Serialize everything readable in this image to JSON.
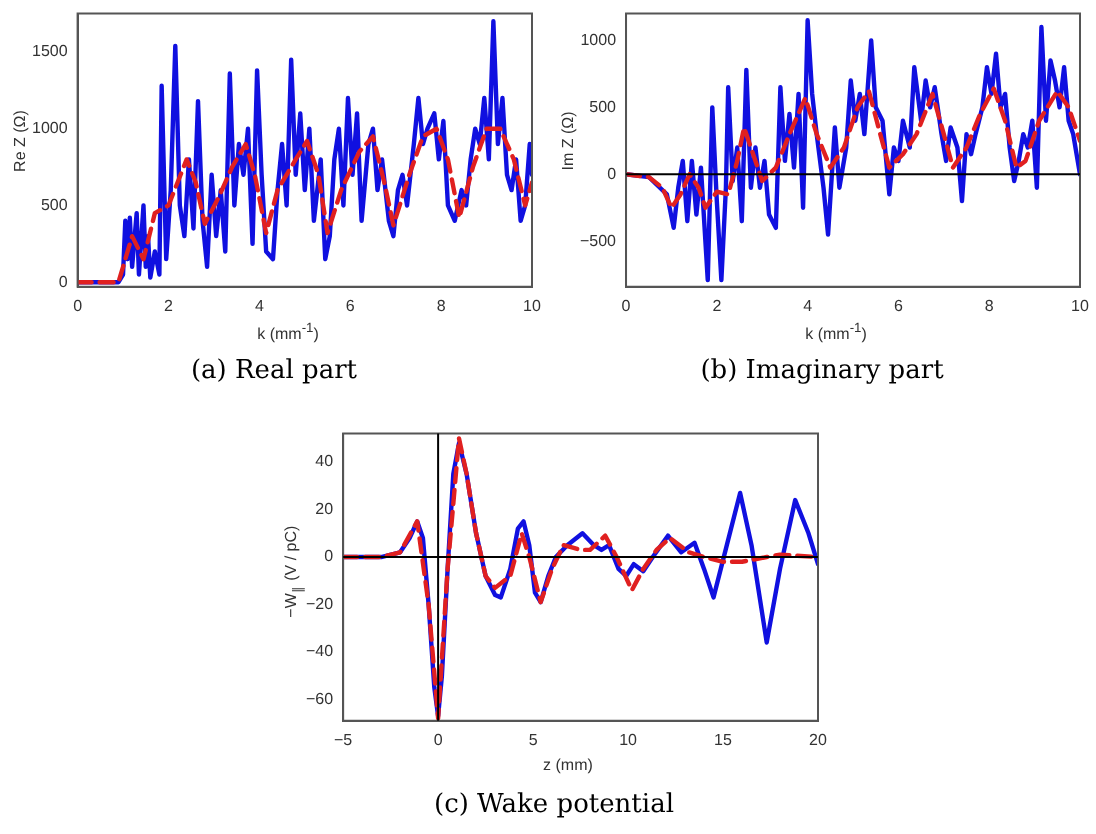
{
  "chart_data": [
    {
      "type": "line",
      "title": "(a) Real part",
      "xlabel": "k (mm$^{-1}$)",
      "ylabel": "Re Z (Ω)",
      "xlim": [
        0,
        10
      ],
      "ylim": [
        -30,
        1750
      ],
      "xticks": [
        0,
        2,
        4,
        6,
        8,
        10
      ],
      "yticks": [
        0,
        500,
        1000,
        1500
      ],
      "grid": false,
      "marker": "none",
      "series": [
        {
          "color": "#1010e0",
          "line_style": "solid",
          "x": [
            0,
            0.9,
            1.0,
            1.05,
            1.1,
            1.15,
            1.2,
            1.3,
            1.35,
            1.45,
            1.5,
            1.55,
            1.6,
            1.7,
            1.8,
            1.85,
            1.95,
            2.05,
            2.15,
            2.25,
            2.35,
            2.45,
            2.55,
            2.65,
            2.75,
            2.85,
            2.95,
            3.05,
            3.15,
            3.25,
            3.35,
            3.45,
            3.55,
            3.65,
            3.75,
            3.85,
            3.95,
            4.05,
            4.15,
            4.3,
            4.4,
            4.5,
            4.6,
            4.7,
            4.8,
            4.9,
            5.0,
            5.1,
            5.2,
            5.35,
            5.45,
            5.55,
            5.65,
            5.75,
            5.85,
            5.95,
            6.05,
            6.15,
            6.25,
            6.4,
            6.5,
            6.6,
            6.7,
            6.85,
            6.95,
            7.05,
            7.15,
            7.25,
            7.4,
            7.5,
            7.6,
            7.7,
            7.85,
            7.95,
            8.05,
            8.15,
            8.3,
            8.45,
            8.55,
            8.65,
            8.75,
            8.85,
            8.95,
            9.05,
            9.15,
            9.25,
            9.35,
            9.45,
            9.55,
            9.65,
            9.75,
            9.85,
            9.95,
            10
          ],
          "values": [
            0,
            0,
            50,
            400,
            150,
            420,
            100,
            450,
            50,
            500,
            100,
            300,
            30,
            200,
            50,
            1280,
            150,
            600,
            1540,
            500,
            300,
            800,
            350,
            1180,
            400,
            100,
            700,
            300,
            600,
            200,
            1360,
            500,
            900,
            700,
            1000,
            250,
            1380,
            700,
            200,
            150,
            600,
            900,
            500,
            1450,
            700,
            1100,
            600,
            1000,
            400,
            800,
            150,
            300,
            800,
            1000,
            500,
            1200,
            700,
            1100,
            400,
            900,
            1000,
            600,
            800,
            400,
            300,
            600,
            700,
            500,
            900,
            1200,
            900,
            1000,
            1100,
            800,
            1050,
            500,
            400,
            600,
            500,
            800,
            1000,
            900,
            1200,
            800,
            1700,
            900,
            1200,
            700,
            600,
            800,
            400,
            500,
            900,
            700
          ]
        },
        {
          "color": "#e02020",
          "line_style": "dashed",
          "x": [
            0,
            0.9,
            1.05,
            1.2,
            1.45,
            1.7,
            2.0,
            2.4,
            2.6,
            2.8,
            3.1,
            3.4,
            3.7,
            3.9,
            4.15,
            4.4,
            4.8,
            5.05,
            5.3,
            5.5,
            5.8,
            6.2,
            6.5,
            6.75,
            6.95,
            7.3,
            7.6,
            7.9,
            8.15,
            8.4,
            8.7,
            9.0,
            9.3,
            9.6,
            9.85,
            10
          ],
          "values": [
            0,
            0,
            150,
            300,
            150,
            450,
            500,
            800,
            650,
            380,
            550,
            750,
            900,
            700,
            320,
            600,
            800,
            920,
            700,
            320,
            600,
            850,
            950,
            650,
            370,
            700,
            950,
            1000,
            800,
            420,
            750,
            1000,
            1000,
            800,
            500,
            650
          ]
        }
      ]
    },
    {
      "type": "line",
      "title": "(b) Imaginary part",
      "xlabel": "k (mm$^{-1}$)",
      "ylabel": "Im Z (Ω)",
      "xlim": [
        0,
        10
      ],
      "ylim": [
        -840,
        1200
      ],
      "xticks": [
        0,
        2,
        4,
        6,
        8,
        10
      ],
      "yticks": [
        {
          "value": -500,
          "label": "−500"
        },
        0,
        500,
        1000
      ],
      "grid": false,
      "marker": "none",
      "ref_lines": [
        {
          "axis": "y",
          "value": 0,
          "color": "#000000"
        }
      ],
      "series": [
        {
          "color": "#1010e0",
          "line_style": "solid",
          "x": [
            0,
            0.5,
            0.9,
            1.05,
            1.15,
            1.25,
            1.35,
            1.45,
            1.55,
            1.65,
            1.8,
            1.9,
            2.0,
            2.1,
            2.2,
            2.25,
            2.35,
            2.45,
            2.55,
            2.65,
            2.75,
            2.85,
            2.95,
            3.05,
            3.15,
            3.3,
            3.4,
            3.5,
            3.6,
            3.7,
            3.8,
            3.9,
            4.0,
            4.1,
            4.2,
            4.35,
            4.45,
            4.6,
            4.7,
            4.85,
            4.95,
            5.05,
            5.15,
            5.25,
            5.4,
            5.5,
            5.65,
            5.8,
            5.9,
            6.0,
            6.1,
            6.25,
            6.35,
            6.5,
            6.6,
            6.7,
            6.8,
            6.95,
            7.05,
            7.15,
            7.3,
            7.4,
            7.5,
            7.6,
            7.7,
            7.85,
            7.95,
            8.05,
            8.15,
            8.25,
            8.35,
            8.45,
            8.55,
            8.65,
            8.75,
            8.85,
            8.95,
            9.05,
            9.15,
            9.25,
            9.35,
            9.45,
            9.55,
            9.65,
            9.75,
            9.85,
            10
          ],
          "values": [
            0,
            -20,
            -150,
            -400,
            -100,
            100,
            -350,
            100,
            -300,
            50,
            -790,
            500,
            -200,
            -790,
            -100,
            650,
            -50,
            200,
            -350,
            780,
            -100,
            200,
            -100,
            100,
            -300,
            -400,
            650,
            100,
            450,
            50,
            600,
            -250,
            1150,
            600,
            300,
            -100,
            -450,
            350,
            -100,
            200,
            700,
            400,
            600,
            300,
            1000,
            500,
            400,
            -150,
            200,
            100,
            400,
            200,
            800,
            400,
            700,
            500,
            650,
            300,
            100,
            350,
            200,
            -200,
            300,
            150,
            300,
            500,
            800,
            600,
            900,
            500,
            600,
            200,
            -50,
            100,
            300,
            200,
            400,
            -100,
            1100,
            400,
            850,
            700,
            500,
            800,
            400,
            300,
            0
          ]
        },
        {
          "color": "#e02020",
          "line_style": "dashed",
          "x": [
            0,
            0.5,
            0.8,
            1.0,
            1.2,
            1.4,
            1.6,
            1.75,
            2.0,
            2.25,
            2.45,
            2.6,
            2.8,
            3.0,
            3.3,
            3.6,
            3.95,
            4.2,
            4.5,
            4.8,
            5.1,
            5.35,
            5.6,
            5.8,
            6.1,
            6.4,
            6.75,
            7.0,
            7.2,
            7.5,
            7.8,
            8.1,
            8.35,
            8.6,
            8.8,
            9.1,
            9.5,
            9.75,
            10
          ],
          "values": [
            0,
            -20,
            -100,
            -250,
            -150,
            0,
            -100,
            -250,
            -130,
            -150,
            100,
            350,
            150,
            -50,
            50,
            300,
            570,
            300,
            50,
            200,
            500,
            620,
            300,
            50,
            150,
            300,
            600,
            300,
            50,
            200,
            450,
            640,
            400,
            50,
            100,
            400,
            620,
            500,
            250
          ]
        }
      ]
    },
    {
      "type": "line",
      "title": "(c) Wake potential",
      "xlabel": "z (mm)",
      "ylabel": "−W$_{∥}$ (V / pC)",
      "xlim": [
        -5,
        20
      ],
      "ylim": [
        -69,
        52
      ],
      "xticks": [
        {
          "value": -5,
          "label": "−5"
        },
        0,
        5,
        10,
        15,
        20
      ],
      "yticks": [
        {
          "value": -60,
          "label": "−60"
        },
        {
          "value": -40,
          "label": "−40"
        },
        {
          "value": -20,
          "label": "−20"
        },
        0,
        20,
        40
      ],
      "grid": false,
      "marker": "none",
      "ref_lines": [
        {
          "axis": "y",
          "value": 0,
          "color": "#000000"
        },
        {
          "axis": "x",
          "value": 0,
          "color": "#000000"
        }
      ],
      "series": [
        {
          "color": "#1010e0",
          "line_style": "solid",
          "x": [
            -5,
            -3,
            -2,
            -1.5,
            -1.1,
            -0.8,
            -0.5,
            -0.2,
            0,
            0.2,
            0.5,
            0.8,
            1.1,
            1.5,
            2.0,
            2.5,
            3.0,
            3.3,
            3.8,
            4.2,
            4.5,
            4.8,
            5.1,
            5.4,
            5.8,
            6.2,
            6.8,
            7.6,
            8.2,
            8.6,
            9.0,
            9.5,
            9.9,
            10.3,
            10.8,
            11.3,
            12.1,
            12.8,
            13.5,
            14.0,
            14.5,
            15.2,
            15.9,
            16.5,
            17.3,
            18.0,
            18.8,
            19.5,
            20
          ],
          "values": [
            0,
            0,
            2,
            8,
            15,
            8,
            -20,
            -55,
            -67,
            -50,
            -5,
            35,
            48,
            35,
            10,
            -8,
            -16,
            -17,
            -5,
            12,
            15,
            5,
            -15,
            -19,
            -8,
            0,
            5,
            10,
            5,
            3,
            5,
            -5,
            -8,
            -3,
            -6,
            0,
            9,
            2,
            6,
            -5,
            -17,
            5,
            27,
            5,
            -36,
            -5,
            24,
            10,
            -3
          ]
        },
        {
          "color": "#e02020",
          "line_style": "dashed",
          "x": [
            -5,
            -3,
            -2,
            -1.1,
            -0.5,
            0,
            0.5,
            1.1,
            1.5,
            2.0,
            2.5,
            3.0,
            3.8,
            4.4,
            4.8,
            5.4,
            6.0,
            6.6,
            7.5,
            8.0,
            8.8,
            9.4,
            10.2,
            10.8,
            11.5,
            12.2,
            13.2,
            14,
            15,
            16,
            17.3,
            18,
            20
          ],
          "values": [
            0,
            0,
            2,
            15,
            -20,
            -68,
            -5,
            50,
            35,
            10,
            -8,
            -13,
            -8,
            10,
            0,
            -19,
            -5,
            5,
            3,
            3,
            9,
            0,
            -14,
            -5,
            3,
            8,
            2,
            0,
            -2,
            -2,
            0,
            1,
            0
          ]
        }
      ]
    }
  ]
}
